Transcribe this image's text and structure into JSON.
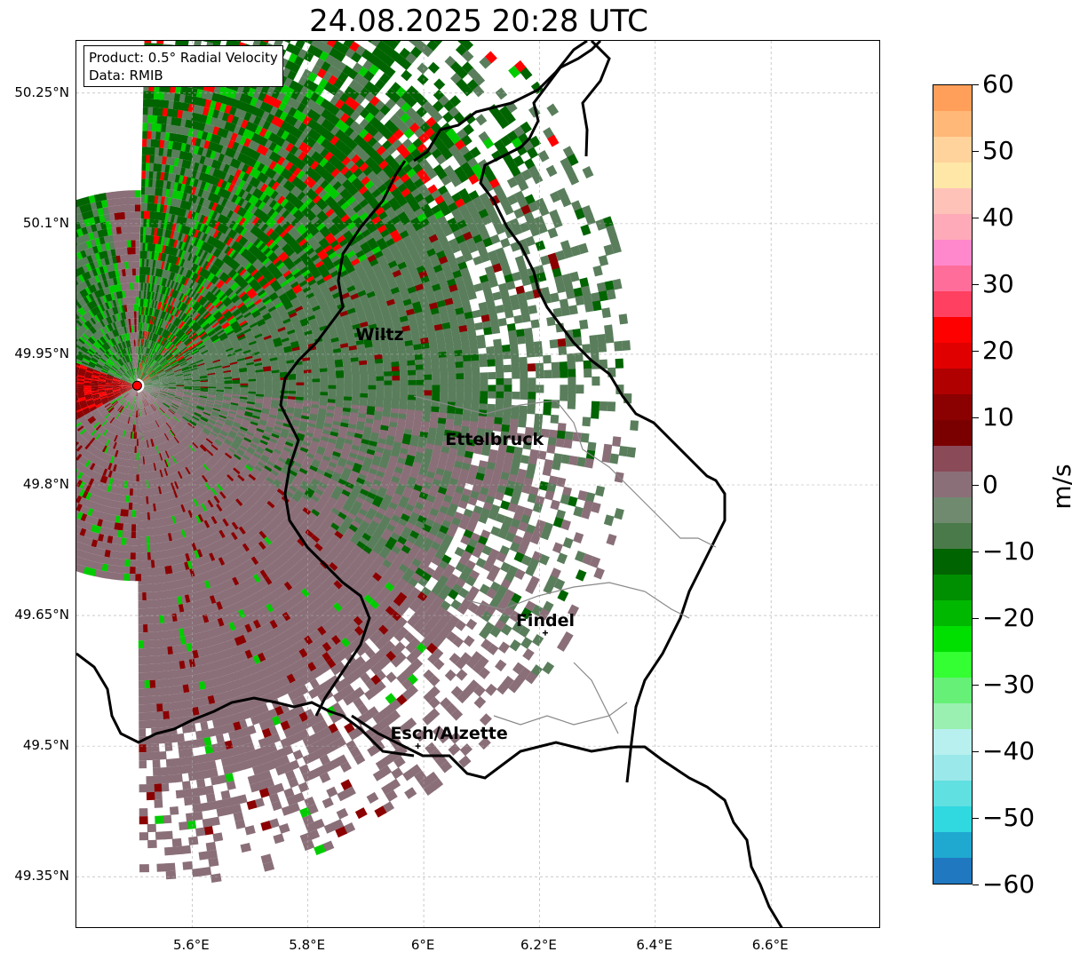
{
  "title": "24.08.2025 20:28 UTC",
  "info_box": {
    "product": "Product: 0.5° Radial Velocity",
    "data_source": "Data: RMIB"
  },
  "map": {
    "lon_range": [
      5.4,
      6.79
    ],
    "lat_range": [
      49.29,
      50.31
    ],
    "lat_ticks": [
      "50.25°N",
      "50.1°N",
      "49.95°N",
      "49.8°N",
      "49.65°N",
      "49.5°N",
      "49.35°N"
    ],
    "lon_ticks": [
      "5.6°E",
      "5.8°E",
      "6°E",
      "6.2°E",
      "6.4°E",
      "6.6°E"
    ],
    "gridlines": true,
    "radar_site": {
      "lon": 5.505,
      "lat": 49.914,
      "color": "#ff0000"
    },
    "cities": [
      {
        "name": "Wiltz",
        "lon": 5.93,
        "lat": 49.97
      },
      {
        "name": "Ettelbruck",
        "lon": 6.1,
        "lat": 49.85
      },
      {
        "name": "Findel",
        "lon": 6.21,
        "lat": 49.63
      },
      {
        "name": "Esch/Alzette",
        "lon": 5.99,
        "lat": 49.5
      }
    ],
    "colors": {
      "inbound_strong": "#006400",
      "inbound": "#00cc00",
      "near_zero_neg": "#5a7e5c",
      "near_zero_pos": "#8a6f78",
      "outbound": "#8b0000",
      "outbound_strong": "#ff0000"
    }
  },
  "colorbar": {
    "unit": "m/s",
    "min": -60,
    "max": 60,
    "ticks": [
      "60",
      "50",
      "40",
      "30",
      "20",
      "10",
      "0",
      "−10",
      "−20",
      "−30",
      "−40",
      "−50",
      "−60"
    ],
    "stops": [
      "#ff9f5a",
      "#ffb878",
      "#ffd39b",
      "#ffe7a8",
      "#ffc2b8",
      "#ffaab8",
      "#ff88cc",
      "#ff6e9a",
      "#ff4060",
      "#ff0000",
      "#e00000",
      "#b00000",
      "#8b0000",
      "#7a0000",
      "#8a4a58",
      "#8a6f78",
      "#708a70",
      "#4a7a4a",
      "#006400",
      "#008f00",
      "#00b800",
      "#00e000",
      "#33ff33",
      "#66f077",
      "#99f0b0",
      "#b8f0f0",
      "#9ae8ea",
      "#60e0e0",
      "#30d8e0",
      "#1fa8d0",
      "#1f78c0"
    ]
  }
}
